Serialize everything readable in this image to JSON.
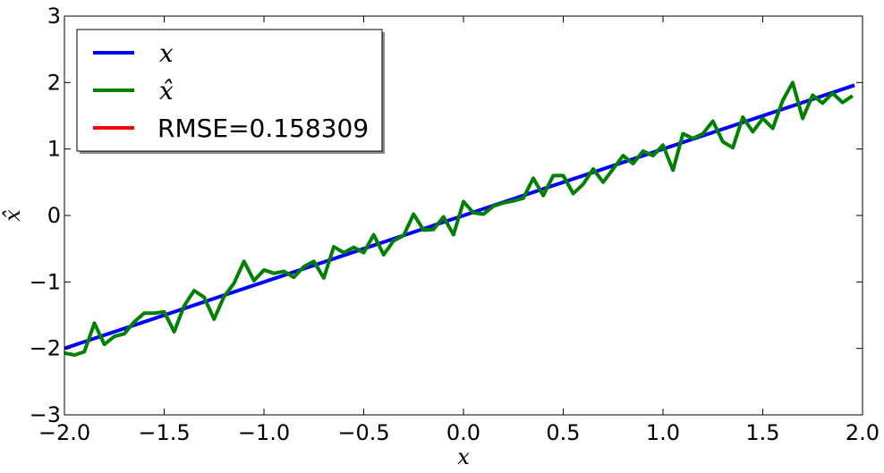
{
  "chart_data": {
    "type": "line",
    "xlabel": "x",
    "ylabel": "x̂",
    "xlim": [
      -2.0,
      2.0
    ],
    "ylim": [
      -3,
      3
    ],
    "xticks": [
      -2.0,
      -1.5,
      -1.0,
      -0.5,
      0.0,
      0.5,
      1.0,
      1.5,
      2.0
    ],
    "xtick_labels": [
      "−2.0",
      "−1.5",
      "−1.0",
      "−0.5",
      "0.0",
      "0.5",
      "1.0",
      "1.5",
      "2.0"
    ],
    "yticks": [
      -3,
      -2,
      -1,
      0,
      1,
      2,
      3
    ],
    "ytick_labels": [
      "−3",
      "−2",
      "−1",
      "0",
      "1",
      "2",
      "3"
    ],
    "grid": false,
    "legend_position": "top-left",
    "series": [
      {
        "name": "x",
        "color": "#0000ff",
        "x": [
          -2.0,
          1.96
        ],
        "y": [
          -2.0,
          1.96
        ]
      },
      {
        "name": "x̂",
        "color": "#008000",
        "x": [
          -2.0,
          -1.95,
          -1.9,
          -1.85,
          -1.8,
          -1.75,
          -1.7,
          -1.65,
          -1.6,
          -1.55,
          -1.5,
          -1.45,
          -1.4,
          -1.35,
          -1.3,
          -1.25,
          -1.2,
          -1.15,
          -1.1,
          -1.05,
          -1.0,
          -0.95,
          -0.9,
          -0.85,
          -0.8,
          -0.75,
          -0.7,
          -0.65,
          -0.6,
          -0.55,
          -0.5,
          -0.45,
          -0.4,
          -0.35,
          -0.3,
          -0.25,
          -0.2,
          -0.15,
          -0.1,
          -0.05,
          0.0,
          0.05,
          0.1,
          0.15,
          0.2,
          0.25,
          0.3,
          0.35,
          0.4,
          0.45,
          0.5,
          0.55,
          0.6,
          0.65,
          0.7,
          0.75,
          0.8,
          0.85,
          0.9,
          0.95,
          1.0,
          1.05,
          1.1,
          1.15,
          1.2,
          1.25,
          1.3,
          1.35,
          1.4,
          1.45,
          1.5,
          1.55,
          1.6,
          1.65,
          1.7,
          1.75,
          1.8,
          1.85,
          1.9,
          1.95
        ],
        "y": [
          -2.07,
          -2.1,
          -2.05,
          -1.62,
          -1.94,
          -1.82,
          -1.78,
          -1.6,
          -1.47,
          -1.47,
          -1.45,
          -1.75,
          -1.36,
          -1.13,
          -1.23,
          -1.56,
          -1.22,
          -1.02,
          -0.69,
          -0.98,
          -0.82,
          -0.87,
          -0.84,
          -0.93,
          -0.77,
          -0.69,
          -0.94,
          -0.47,
          -0.56,
          -0.48,
          -0.56,
          -0.29,
          -0.59,
          -0.38,
          -0.3,
          0.02,
          -0.22,
          -0.21,
          -0.02,
          -0.29,
          0.21,
          0.04,
          0.02,
          0.14,
          0.19,
          0.22,
          0.26,
          0.56,
          0.3,
          0.6,
          0.6,
          0.33,
          0.47,
          0.7,
          0.5,
          0.7,
          0.9,
          0.78,
          0.97,
          0.9,
          1.06,
          0.68,
          1.23,
          1.16,
          1.23,
          1.42,
          1.11,
          1.02,
          1.48,
          1.26,
          1.46,
          1.31,
          1.73,
          2.0,
          1.46,
          1.81,
          1.69,
          1.84,
          1.7,
          1.8
        ]
      },
      {
        "name": "RMSE=0.158309",
        "color": "#ff0000",
        "x": [],
        "y": []
      }
    ]
  }
}
